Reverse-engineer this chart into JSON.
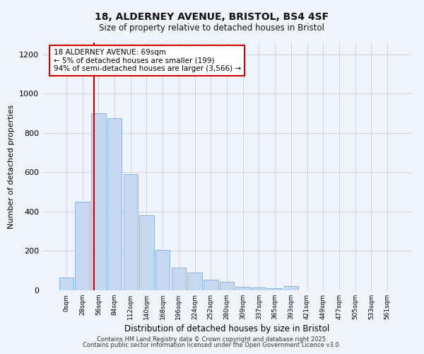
{
  "title": "18, ALDERNEY AVENUE, BRISTOL, BS4 4SF",
  "subtitle": "Size of property relative to detached houses in Bristol",
  "xlabel": "Distribution of detached houses by size in Bristol",
  "ylabel": "Number of detached properties",
  "bar_labels": [
    "0sqm",
    "28sqm",
    "56sqm",
    "84sqm",
    "112sqm",
    "140sqm",
    "168sqm",
    "196sqm",
    "224sqm",
    "252sqm",
    "280sqm",
    "309sqm",
    "337sqm",
    "365sqm",
    "393sqm",
    "421sqm",
    "449sqm",
    "477sqm",
    "505sqm",
    "533sqm",
    "561sqm"
  ],
  "bar_heights": [
    65,
    450,
    900,
    875,
    590,
    380,
    205,
    115,
    90,
    55,
    45,
    18,
    15,
    10,
    20,
    0,
    0,
    0,
    0,
    0,
    0
  ],
  "bar_color": "#c5d8f0",
  "bar_edge_color": "#7ab0d8",
  "vline_x": 1.72,
  "vline_color": "#cc0000",
  "annotation_text": "18 ALDERNEY AVENUE: 69sqm\n← 5% of detached houses are smaller (199)\n94% of semi-detached houses are larger (3,566) →",
  "annotation_box_color": "#ffffff",
  "annotation_box_edge": "#cc0000",
  "ylim": [
    0,
    1260
  ],
  "yticks": [
    0,
    200,
    400,
    600,
    800,
    1000,
    1200
  ],
  "background_color": "#f0f4fa",
  "grid_color": "#c8d4e8",
  "footer_line1": "Contains HM Land Registry data © Crown copyright and database right 2025.",
  "footer_line2": "Contains public sector information licensed under the Open Government Licence v3.0."
}
